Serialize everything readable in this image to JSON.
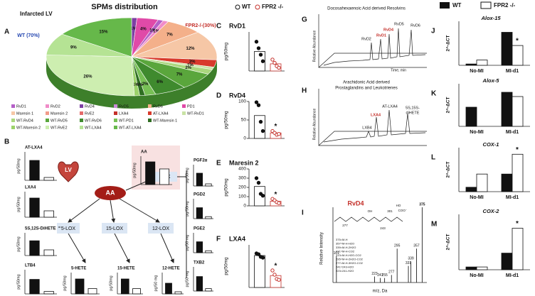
{
  "pie_panel": {
    "label": "A",
    "title": "SPMs distribution",
    "subtitle": "Infarcted LV",
    "wt_label": "WT (70%)",
    "ko_label": "FPR2-/-(30%)",
    "slices": {
      "values": [
        1,
        4,
        1,
        1,
        7,
        12,
        3,
        1,
        2,
        7,
        6,
        2,
        1,
        1,
        26,
        9,
        15
      ],
      "value_labels": [
        "1%",
        "4%",
        "1%",
        "1%",
        "7%",
        "12%",
        "3%",
        "1%",
        "2%",
        "7%",
        "6%",
        "2%",
        "1%",
        "1%",
        "26%",
        "9%",
        "15%"
      ],
      "colors": [
        "#7d3fa3",
        "#e04aa8",
        "#b45fc7",
        "#f08cc8",
        "#f4b08a",
        "#f6c7a6",
        "#d83a2c",
        "#c9e3a5",
        "#aad77e",
        "#5aa63c",
        "#3f8a2e",
        "#78c056",
        "#2f6e22",
        "#9bd26a",
        "#cdeeb0",
        "#b5e394",
        "#66b84a"
      ]
    },
    "legend": [
      {
        "name": "RvD1",
        "color": "#b45fc7"
      },
      {
        "name": "RvD2",
        "color": "#f08cc8"
      },
      {
        "name": "RvD4",
        "color": "#7d3fa3"
      },
      {
        "name": "RvD5",
        "color": "#c98ad6"
      },
      {
        "name": "RvD6",
        "color": "#f4b08a"
      },
      {
        "name": "PD1",
        "color": "#e04aa8"
      },
      {
        "name": "Maresin 1",
        "color": "#f6c7a6"
      },
      {
        "name": "Maresin 2",
        "color": "#f29b8a"
      },
      {
        "name": "RvE2",
        "color": "#e46a6a"
      },
      {
        "name": "LXA4",
        "color": "#c4302a"
      },
      {
        "name": "AT-LXA4",
        "color": "#d83a2c"
      },
      {
        "name": "WT-RvD1",
        "color": "#c9e3a5"
      },
      {
        "name": "WT-RvD4",
        "color": "#aad77e"
      },
      {
        "name": "WT-RvD5",
        "color": "#5aa63c"
      },
      {
        "name": "WT-RvD6",
        "color": "#3f8a2e"
      },
      {
        "name": "WT-PD1",
        "color": "#78c056"
      },
      {
        "name": "WT-Maresin 1",
        "color": "#2f6e22"
      },
      {
        "name": "WT-Maresin 2",
        "color": "#9bd26a"
      },
      {
        "name": "WT-RvE2",
        "color": "#cdeeb0"
      },
      {
        "name": "WT-LXA4",
        "color": "#b5e394"
      },
      {
        "name": "WT-AT-LXA4",
        "color": "#66b84a"
      }
    ]
  },
  "pathway": {
    "label": "B",
    "heart": "LV",
    "aa": "AA",
    "cox": "COX",
    "lox5": "5-LOX",
    "lox15": "15-LOX",
    "lox12": "12-LOX"
  },
  "mini_charts": [
    {
      "title": "AT-LXA4",
      "ylabel": "pg/50mg",
      "values": [
        70,
        10
      ],
      "ylim": [
        0,
        100
      ]
    },
    {
      "title": "LXA4",
      "ylabel": "pg/50mg",
      "values": [
        75,
        25
      ],
      "ylim": [
        0,
        100
      ]
    },
    {
      "title": "5S,12S-DiHETE",
      "ylabel": "pg/50mg",
      "values": [
        65,
        25
      ],
      "ylim": [
        0,
        100
      ]
    },
    {
      "title": "LTB4",
      "ylabel": "pg/50mg",
      "values": [
        60,
        10
      ],
      "ylim": [
        0,
        100
      ]
    },
    {
      "title": "AA",
      "ylabel": "pg/50mg",
      "values": [
        80,
        55
      ],
      "ylim": [
        0,
        100
      ]
    },
    {
      "title": "5-HETE",
      "ylabel": "pg/50mg",
      "values": [
        70,
        25
      ],
      "ylim": [
        0,
        100
      ]
    },
    {
      "title": "15-HETE",
      "ylabel": "pg/50mg",
      "values": [
        70,
        25
      ],
      "ylim": [
        0,
        100
      ]
    },
    {
      "title": "12-HETE",
      "ylabel": "pg/50 mg",
      "values": [
        50,
        10
      ],
      "ylim": [
        0,
        100
      ]
    },
    {
      "title": "PGF2α",
      "ylabel": "pg/50mg",
      "values": [
        60,
        10
      ],
      "ylim": [
        0,
        100
      ]
    },
    {
      "title": "PGD2",
      "ylabel": "pg/50mg",
      "values": [
        55,
        10
      ],
      "ylim": [
        0,
        100
      ]
    },
    {
      "title": "PGE2",
      "ylabel": "pg/50 mg",
      "values": [
        55,
        10
      ],
      "ylim": [
        0,
        100
      ]
    },
    {
      "title": "TXB2",
      "ylabel": "pg/50 mg",
      "values": [
        60,
        10
      ],
      "ylim": [
        0,
        100
      ]
    }
  ],
  "dot_legend": {
    "wt": "WT",
    "ko": "FPR2 -/-"
  },
  "dot_charts": [
    {
      "label": "C",
      "title": "RvD1",
      "ylabel": "pg/50mg",
      "values": [
        60,
        22
      ],
      "points": [
        [
          90,
          70,
          50,
          30
        ],
        [
          35,
          25,
          15,
          10
        ]
      ],
      "ylim": [
        0,
        120
      ],
      "yticks": []
    },
    {
      "label": "D",
      "title": "RvD4",
      "ylabel": "pg/50mg",
      "values": [
        62,
        15
      ],
      "points": [
        [
          98,
          90,
          45,
          20
        ],
        [
          20,
          15,
          10,
          12
        ]
      ],
      "ylim": [
        0,
        100
      ],
      "yticks": [
        0,
        50,
        100
      ],
      "annotation": "*"
    },
    {
      "label": "E",
      "title": "Maresin 2",
      "ylabel": "pg/50mg",
      "values": [
        210,
        50
      ],
      "points": [
        [
          300,
          250,
          130,
          110
        ],
        [
          75,
          60,
          40,
          30
        ]
      ],
      "ylim": [
        0,
        400
      ],
      "yticks": [
        0,
        100,
        200,
        300,
        400
      ],
      "annotation": "*"
    },
    {
      "label": "F",
      "title": "LXA4",
      "ylabel": "pg/50mg",
      "values": [
        75,
        28
      ],
      "points": [
        [
          80,
          78,
          72,
          70
        ],
        [
          40,
          30,
          20,
          18
        ]
      ],
      "ylim": [
        0,
        100
      ],
      "yticks": [],
      "annotation": "*"
    }
  ],
  "chromatograms": [
    {
      "label": "G",
      "title": "Docosahexaenoic Acid derived Resolvins",
      "ylabel": "Relative Abundance",
      "xlabel": "Time, min",
      "peaks": [
        "RvD5",
        "RvD4",
        "RvD1",
        "RvD2",
        "RvD6"
      ]
    },
    {
      "label": "H",
      "title": "Arachidonic Acid derived",
      "title2": "Prostaglandins and Leukotrienes",
      "ylabel": "Relative Abundance",
      "peaks": [
        "AT-LXA4",
        "5S,15S-",
        "diHETE",
        "LXA4",
        "LXB4"
      ]
    }
  ],
  "spectrum": {
    "label": "I",
    "title": "RvD4",
    "ylabel": "Relative Intensity",
    "xlabel": "m/z, Da",
    "xlim": [
      90,
      390
    ],
    "ylim": [
      0,
      100
    ],
    "peaks": {
      "mz": [
        101,
        223,
        241,
        255,
        277,
        295,
        331,
        339,
        357,
        375
      ],
      "intensity": [
        35,
        8,
        6,
        6,
        10,
        45,
        22,
        28,
        45,
        100
      ]
    },
    "structure_labels": [
      "301",
      "277",
      "243",
      "COO⁻",
      "HO",
      "OH"
    ],
    "ions": [
      "375=M-H",
      "357=M-H-H2O",
      "339=M-H-2H2O",
      "331=M-H-CO2",
      "313=M-H-H2O-CO2",
      "295=M-H-2H2O-CO2",
      "277=M-H-3H2O-CO2",
      "241=243-H2O",
      "223=241-H2O"
    ]
  },
  "qpcr_legend": {
    "wt": "WT",
    "ko": "FPR2 -/-"
  },
  "qpcr": [
    {
      "label": "J",
      "title": "Alox-15",
      "ylabel": "2^-ΔCT",
      "categories": [
        "No-MI",
        "MI-d1"
      ],
      "wt": [
        3,
        75
      ],
      "ko": [
        12,
        45
      ],
      "ylim": [
        0,
        100
      ],
      "annotation": "*"
    },
    {
      "label": "K",
      "title": "Alox-5",
      "ylabel": "2^-ΔCT",
      "categories": [
        "No-MI",
        "MI-d1"
      ],
      "wt": [
        45,
        80
      ],
      "ko": [
        0,
        70
      ],
      "ylim": [
        0,
        100
      ]
    },
    {
      "label": "L",
      "title": "COX-1",
      "ylabel": "2^-ΔCT",
      "categories": [
        "No-MI",
        "MI-d1"
      ],
      "wt": [
        10,
        40
      ],
      "ko": [
        40,
        85
      ],
      "ylim": [
        0,
        100
      ],
      "annotation": "*"
    },
    {
      "label": "M",
      "title": "COX-2",
      "ylabel": "2^-ΔCT",
      "categories": [
        "No-MI",
        "MI-d1"
      ],
      "wt": [
        5,
        30
      ],
      "ko": [
        5,
        75
      ],
      "ylim": [
        0,
        100
      ],
      "annotation": "*"
    }
  ]
}
